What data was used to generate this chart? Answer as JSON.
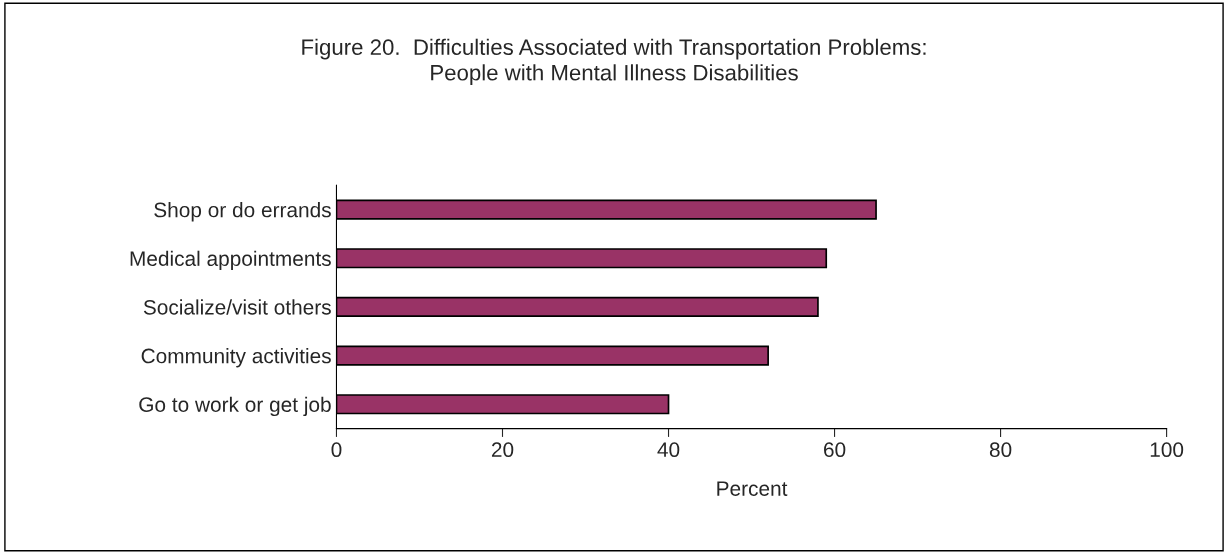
{
  "chart_data": {
    "type": "bar",
    "orientation": "horizontal",
    "title": "Figure 20.  Difficulties Associated with Transportation Problems:\nPeople with Mental Illness Disabilities",
    "categories": [
      "Shop or do errands",
      "Medical appointments",
      "Socialize/visit others",
      "Community activities",
      "Go to work or get job"
    ],
    "values": [
      65,
      59,
      58,
      52,
      40
    ],
    "color": "#993366",
    "xlabel": "Percent",
    "xlim": [
      0,
      100
    ],
    "xticks": [
      0,
      20,
      40,
      60,
      80,
      100
    ],
    "grid": false,
    "legend": false
  }
}
